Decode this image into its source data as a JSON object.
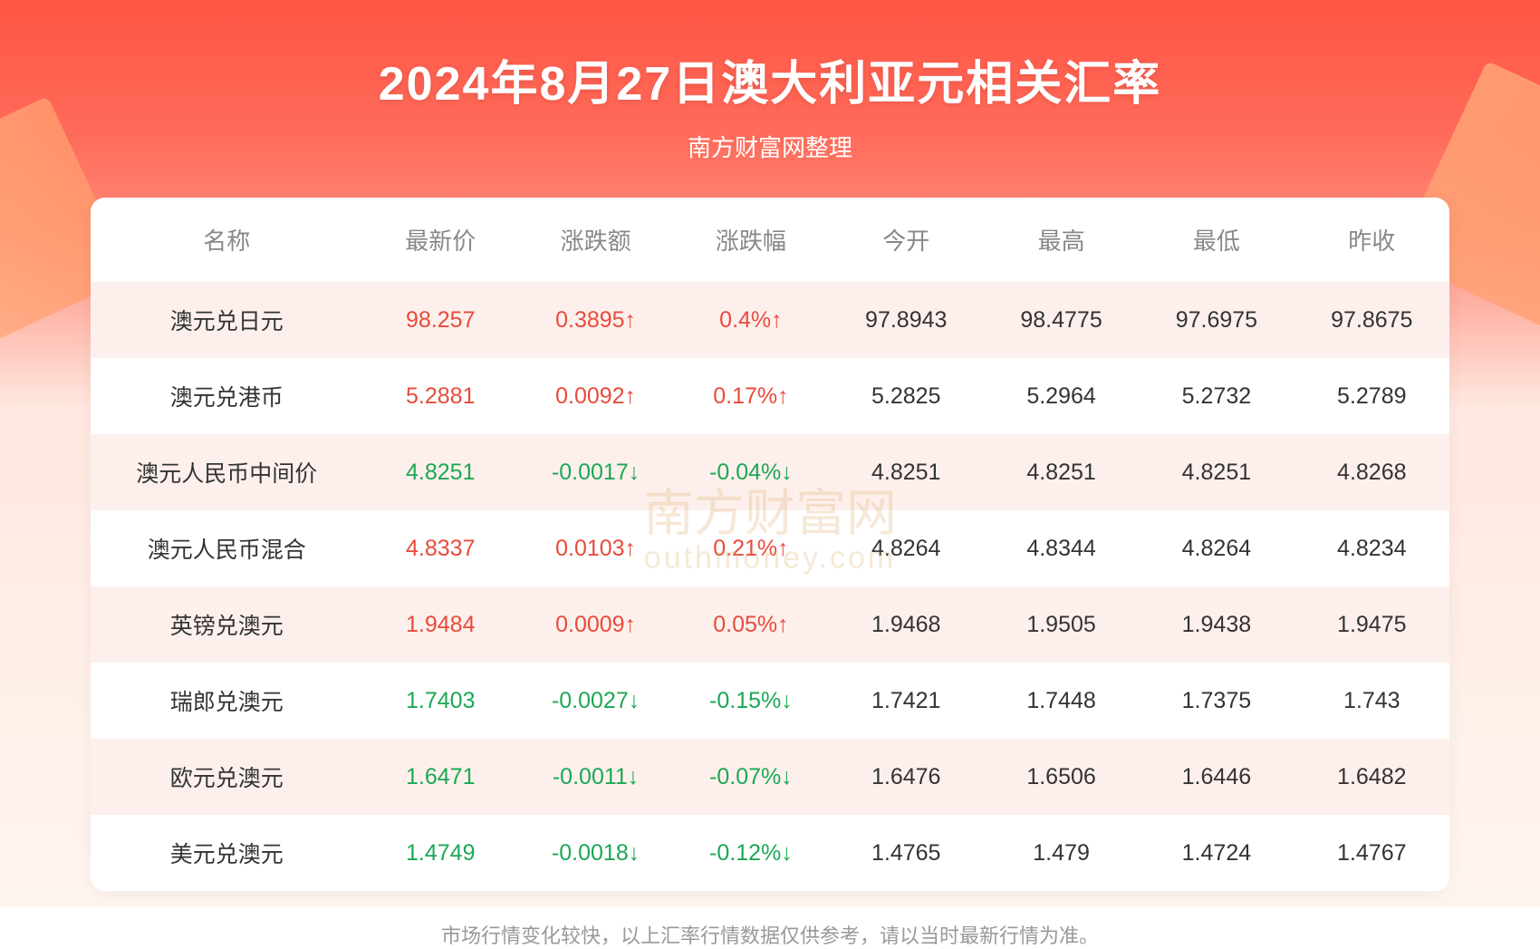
{
  "header": {
    "title": "2024年8月27日澳大利亚元相关汇率",
    "subtitle": "南方财富网整理"
  },
  "colors": {
    "bg_gradient_top": "#ff5544",
    "bg_gradient_bottom": "#fff5f0",
    "deco": "#ff9966",
    "row_odd_bg": "#fdf0ec",
    "row_even_bg": "#ffffff",
    "header_text": "#888888",
    "body_text": "#333333",
    "up_color": "#e84b3c",
    "down_color": "#1ba854",
    "footnote_color": "#999999",
    "watermark_color": "#e0b070"
  },
  "typography": {
    "title_fontsize": 52,
    "subtitle_fontsize": 26,
    "header_fontsize": 26,
    "cell_fontsize": 25,
    "footnote_fontsize": 22
  },
  "table": {
    "type": "table",
    "columns": [
      "名称",
      "最新价",
      "涨跌额",
      "涨跌幅",
      "今开",
      "最高",
      "最低",
      "昨收"
    ],
    "column_widths_pct": [
      20,
      11.4,
      11.4,
      11.4,
      11.4,
      11.4,
      11.4,
      11.4
    ],
    "rows": [
      {
        "name": "澳元兑日元",
        "last": "98.257",
        "chg": "0.3895↑",
        "pct": "0.4%↑",
        "open": "97.8943",
        "high": "98.4775",
        "low": "97.6975",
        "prev": "97.8675",
        "dir": "up"
      },
      {
        "name": "澳元兑港币",
        "last": "5.2881",
        "chg": "0.0092↑",
        "pct": "0.17%↑",
        "open": "5.2825",
        "high": "5.2964",
        "low": "5.2732",
        "prev": "5.2789",
        "dir": "up"
      },
      {
        "name": "澳元人民币中间价",
        "last": "4.8251",
        "chg": "-0.0017↓",
        "pct": "-0.04%↓",
        "open": "4.8251",
        "high": "4.8251",
        "low": "4.8251",
        "prev": "4.8268",
        "dir": "down"
      },
      {
        "name": "澳元人民币混合",
        "last": "4.8337",
        "chg": "0.0103↑",
        "pct": "0.21%↑",
        "open": "4.8264",
        "high": "4.8344",
        "low": "4.8264",
        "prev": "4.8234",
        "dir": "up"
      },
      {
        "name": "英镑兑澳元",
        "last": "1.9484",
        "chg": "0.0009↑",
        "pct": "0.05%↑",
        "open": "1.9468",
        "high": "1.9505",
        "low": "1.9438",
        "prev": "1.9475",
        "dir": "up"
      },
      {
        "name": "瑞郎兑澳元",
        "last": "1.7403",
        "chg": "-0.0027↓",
        "pct": "-0.15%↓",
        "open": "1.7421",
        "high": "1.7448",
        "low": "1.7375",
        "prev": "1.743",
        "dir": "down"
      },
      {
        "name": "欧元兑澳元",
        "last": "1.6471",
        "chg": "-0.0011↓",
        "pct": "-0.07%↓",
        "open": "1.6476",
        "high": "1.6506",
        "low": "1.6446",
        "prev": "1.6482",
        "dir": "down"
      },
      {
        "name": "美元兑澳元",
        "last": "1.4749",
        "chg": "-0.0018↓",
        "pct": "-0.12%↓",
        "open": "1.4765",
        "high": "1.479",
        "low": "1.4724",
        "prev": "1.4767",
        "dir": "down"
      }
    ]
  },
  "watermark": {
    "line1": "南方财富网",
    "line2": "outhmoney.com"
  },
  "footnote": "市场行情变化较快，以上汇率行情数据仅供参考，请以当时最新行情为准。"
}
